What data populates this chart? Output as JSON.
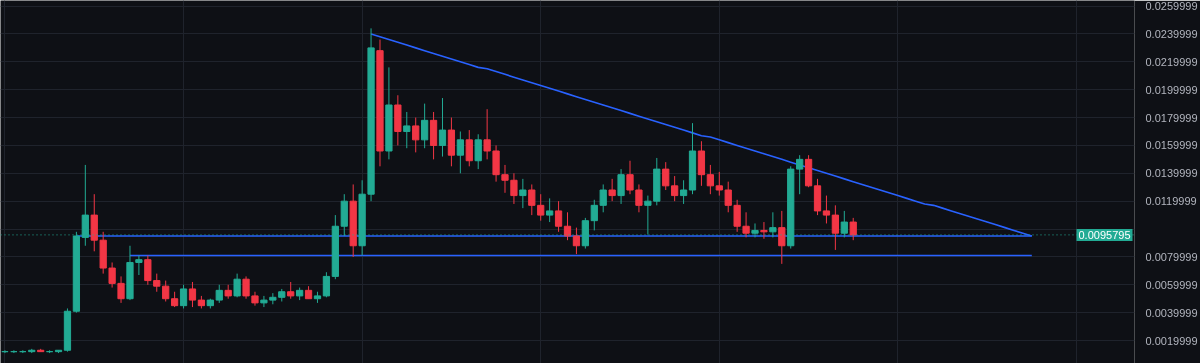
{
  "chart_data": {
    "type": "candlestick",
    "ylim": [
      0.00035,
      0.0264
    ],
    "categories": [
      null,
      null,
      null,
      null,
      null,
      null,
      null,
      null,
      null,
      null,
      null,
      null,
      null,
      null,
      null,
      null,
      null,
      null,
      null,
      null,
      null,
      null,
      null,
      null,
      null,
      null,
      null,
      null,
      null,
      null,
      null,
      null,
      null,
      null,
      null,
      null,
      null,
      null,
      null,
      null,
      null,
      null,
      null,
      null,
      null,
      null,
      null,
      null,
      null,
      null,
      null,
      null,
      null,
      null,
      null,
      null,
      null,
      null,
      null,
      null,
      null,
      null,
      null,
      null,
      null,
      null,
      null,
      null,
      null,
      null,
      null,
      null,
      null,
      null,
      null,
      null,
      null,
      null,
      null,
      null,
      null,
      null,
      null,
      null,
      null,
      null,
      null,
      null,
      null,
      null,
      null,
      null,
      null,
      null,
      null,
      null,
      null,
      null,
      null,
      null,
      null,
      null,
      null,
      null,
      null,
      null,
      null,
      null,
      null,
      null,
      null,
      null,
      null,
      null,
      null,
      null,
      null,
      null,
      null,
      null,
      null,
      null,
      null,
      null,
      null,
      null,
      null
    ],
    "yticks": [
      0.0019999,
      0.0039999,
      0.0059999,
      0.0079999,
      {
        "value": 0.0099999,
        "label": null
      },
      0.0119999,
      0.0139999,
      0.0159999,
      0.0179999,
      0.0199999,
      0.0219999,
      0.0239999,
      0.0259999
    ],
    "tick_labels": "y",
    "grid": true,
    "ref_lines": [
      {
        "axis": "y",
        "value": 0.0095795,
        "label": "0.0095795",
        "color": "#22ab94",
        "line_style": "dotted"
      }
    ],
    "ohlc": [
      [
        0.0012,
        0.0013,
        0.0011,
        0.0012
      ],
      [
        0.0012,
        0.0013,
        0.0011,
        0.0012
      ],
      [
        0.0012,
        0.0013,
        0.0011,
        0.0012
      ],
      [
        0.0012,
        0.0014,
        0.0011,
        0.0013
      ],
      [
        0.0013,
        0.0014,
        0.0012,
        0.0012
      ],
      [
        0.0012,
        0.0013,
        0.0011,
        0.0012
      ],
      [
        0.0012,
        0.0013,
        0.0011,
        0.0013
      ],
      [
        0.0013,
        0.0043,
        0.0012,
        0.0041
      ],
      [
        0.0041,
        0.0098,
        0.004,
        0.0095
      ],
      [
        0.0094,
        0.0146,
        0.0088,
        0.011
      ],
      [
        0.011,
        0.0125,
        0.0084,
        0.0092
      ],
      [
        0.0092,
        0.0098,
        0.0068,
        0.0072
      ],
      [
        0.0072,
        0.0076,
        0.0058,
        0.0061
      ],
      [
        0.0061,
        0.0066,
        0.0047,
        0.005
      ],
      [
        0.005,
        0.0088,
        0.0049,
        0.0076
      ],
      [
        0.0076,
        0.0081,
        0.0067,
        0.0078
      ],
      [
        0.0078,
        0.0081,
        0.006,
        0.0063
      ],
      [
        0.0063,
        0.0068,
        0.0055,
        0.0059
      ],
      [
        0.0059,
        0.0063,
        0.0048,
        0.005
      ],
      [
        0.005,
        0.0055,
        0.0044,
        0.0045
      ],
      [
        0.0045,
        0.006,
        0.0043,
        0.0057
      ],
      [
        0.0057,
        0.0062,
        0.0044,
        0.0049
      ],
      [
        0.0049,
        0.0052,
        0.0043,
        0.0045
      ],
      [
        0.0045,
        0.005,
        0.0043,
        0.0049
      ],
      [
        0.0049,
        0.006,
        0.0047,
        0.0056
      ],
      [
        0.0056,
        0.006,
        0.005,
        0.0052
      ],
      [
        0.0052,
        0.0068,
        0.0051,
        0.0064
      ],
      [
        0.0064,
        0.0066,
        0.005,
        0.0052
      ],
      [
        0.0052,
        0.0055,
        0.0045,
        0.0047
      ],
      [
        0.0047,
        0.0052,
        0.0044,
        0.0049
      ],
      [
        0.0049,
        0.0054,
        0.0046,
        0.0051
      ],
      [
        0.0051,
        0.0057,
        0.0048,
        0.0055
      ],
      [
        0.0055,
        0.0062,
        0.005,
        0.0052
      ],
      [
        0.0052,
        0.0058,
        0.0049,
        0.0056
      ],
      [
        0.0056,
        0.0059,
        0.005,
        0.005
      ],
      [
        0.005,
        0.0055,
        0.0047,
        0.0052
      ],
      [
        0.0052,
        0.0069,
        0.0051,
        0.0066
      ],
      [
        0.0066,
        0.011,
        0.0064,
        0.0102
      ],
      [
        0.0102,
        0.0125,
        0.0095,
        0.012
      ],
      [
        0.012,
        0.0132,
        0.008,
        0.0088
      ],
      [
        0.0088,
        0.0135,
        0.0081,
        0.0125
      ],
      [
        0.0125,
        0.0244,
        0.012,
        0.023
      ],
      [
        0.0228,
        0.0236,
        0.0145,
        0.0156
      ],
      [
        0.0156,
        0.0216,
        0.015,
        0.0189
      ],
      [
        0.0189,
        0.0196,
        0.016,
        0.017
      ],
      [
        0.017,
        0.0184,
        0.0158,
        0.0174
      ],
      [
        0.0174,
        0.018,
        0.0155,
        0.0164
      ],
      [
        0.0164,
        0.019,
        0.0158,
        0.0178
      ],
      [
        0.0178,
        0.0184,
        0.015,
        0.016
      ],
      [
        0.016,
        0.0194,
        0.0152,
        0.0171
      ],
      [
        0.0171,
        0.018,
        0.0145,
        0.0153
      ],
      [
        0.0153,
        0.017,
        0.014,
        0.0164
      ],
      [
        0.0164,
        0.0171,
        0.0145,
        0.0149
      ],
      [
        0.0149,
        0.0168,
        0.0143,
        0.0164
      ],
      [
        0.0164,
        0.0186,
        0.015,
        0.0156
      ],
      [
        0.0156,
        0.016,
        0.0134,
        0.0139
      ],
      [
        0.0139,
        0.0146,
        0.0126,
        0.0135
      ],
      [
        0.0135,
        0.014,
        0.0118,
        0.0124
      ],
      [
        0.0124,
        0.0136,
        0.0115,
        0.0128
      ],
      [
        0.0128,
        0.0132,
        0.011,
        0.0117
      ],
      [
        0.0117,
        0.0125,
        0.0106,
        0.011
      ],
      [
        0.011,
        0.0122,
        0.0105,
        0.0113
      ],
      [
        0.0113,
        0.012,
        0.0098,
        0.0102
      ],
      [
        0.0102,
        0.0112,
        0.0092,
        0.0095
      ],
      [
        0.0095,
        0.0101,
        0.0082,
        0.0088
      ],
      [
        0.0088,
        0.0108,
        0.0086,
        0.0106
      ],
      [
        0.0106,
        0.0121,
        0.0099,
        0.0117
      ],
      [
        0.0117,
        0.0132,
        0.0112,
        0.0128
      ],
      [
        0.0128,
        0.0136,
        0.012,
        0.0124
      ],
      [
        0.0124,
        0.0143,
        0.0118,
        0.0139
      ],
      [
        0.0139,
        0.0149,
        0.0125,
        0.0128
      ],
      [
        0.0128,
        0.0132,
        0.0112,
        0.0117
      ],
      [
        0.0117,
        0.0124,
        0.0096,
        0.012
      ],
      [
        0.012,
        0.0151,
        0.0117,
        0.0143
      ],
      [
        0.0143,
        0.0148,
        0.0128,
        0.0131
      ],
      [
        0.0131,
        0.0138,
        0.012,
        0.0124
      ],
      [
        0.0124,
        0.0135,
        0.0118,
        0.0128
      ],
      [
        0.0128,
        0.0176,
        0.0125,
        0.0156
      ],
      [
        0.0156,
        0.0163,
        0.0131,
        0.0139
      ],
      [
        0.0139,
        0.0146,
        0.0125,
        0.0131
      ],
      [
        0.0131,
        0.0141,
        0.0124,
        0.0128
      ],
      [
        0.0128,
        0.0134,
        0.0112,
        0.0117
      ],
      [
        0.0117,
        0.0121,
        0.0098,
        0.0102
      ],
      [
        0.0102,
        0.0112,
        0.0094,
        0.0097
      ],
      [
        0.0097,
        0.0104,
        0.0094,
        0.0099
      ],
      [
        0.0099,
        0.0105,
        0.0093,
        0.0098
      ],
      [
        0.0098,
        0.0112,
        0.0094,
        0.0101
      ],
      [
        0.0101,
        0.0113,
        0.0075,
        0.0088
      ],
      [
        0.0088,
        0.0145,
        0.0086,
        0.0143
      ],
      [
        0.0143,
        0.0153,
        0.0125,
        0.015
      ],
      [
        0.015,
        0.0153,
        0.013,
        0.0131
      ],
      [
        0.0131,
        0.0136,
        0.011,
        0.0113
      ],
      [
        0.0113,
        0.0124,
        0.0104,
        0.011
      ],
      [
        0.011,
        0.0117,
        0.0085,
        0.0097
      ],
      [
        0.0097,
        0.0113,
        0.0094,
        0.0105
      ],
      [
        0.0105,
        0.0108,
        0.0092,
        0.0095795
      ],
      null,
      null,
      null,
      null,
      null,
      null,
      null,
      null,
      null,
      null,
      null,
      null,
      null,
      null,
      null,
      null,
      null,
      null,
      null,
      null,
      null,
      null,
      null,
      null,
      null,
      null,
      null,
      null,
      null,
      null,
      null
    ],
    "colors": [
      "#22ab94",
      "#22ab94",
      "#22ab94",
      "#22ab94",
      "#f23645",
      "#22ab94",
      "#22ab94",
      "#22ab94",
      "#22ab94",
      "#22ab94",
      "#f23645",
      "#f23645",
      "#f23645",
      "#f23645",
      "#22ab94",
      "#22ab94",
      "#f23645",
      "#f23645",
      "#f23645",
      "#f23645",
      "#22ab94",
      "#f23645",
      "#f23645",
      "#22ab94",
      "#22ab94",
      "#f23645",
      "#22ab94",
      "#f23645",
      "#f23645",
      "#22ab94",
      "#22ab94",
      "#22ab94",
      "#f23645",
      "#22ab94",
      "#f23645",
      "#22ab94",
      "#22ab94",
      "#22ab94",
      "#22ab94",
      "#f23645",
      "#22ab94",
      "#22ab94",
      "#f23645",
      "#22ab94",
      "#f23645",
      "#22ab94",
      "#f23645",
      "#22ab94",
      "#f23645",
      "#22ab94",
      "#f23645",
      "#22ab94",
      "#f23645",
      "#22ab94",
      "#f23645",
      "#f23645",
      "#f23645",
      "#f23645",
      "#22ab94",
      "#f23645",
      "#f23645",
      "#22ab94",
      "#f23645",
      "#f23645",
      "#f23645",
      "#22ab94",
      "#22ab94",
      "#22ab94",
      "#f23645",
      "#22ab94",
      "#f23645",
      "#f23645",
      "#22ab94",
      "#22ab94",
      "#f23645",
      "#f23645",
      "#22ab94",
      "#22ab94",
      "#f23645",
      "#f23645",
      "#f23645",
      "#f23645",
      "#f23645",
      "#f23645",
      "#22ab94",
      "#f23645",
      "#22ab94",
      "#f23645",
      "#22ab94",
      "#22ab94",
      "#f23645",
      "#f23645",
      "#f23645",
      "#f23645",
      "#22ab94",
      "#f23645",
      null,
      null,
      null,
      null,
      null,
      null,
      null,
      null,
      null,
      null,
      null,
      null,
      null,
      null,
      null,
      null,
      null,
      null,
      null,
      null,
      null,
      null,
      null,
      null,
      null,
      null,
      null,
      null,
      null,
      null,
      null
    ],
    "series": [
      {
        "type": "line",
        "color": "#2962ff",
        "values": [
          null,
          null,
          null,
          null,
          null,
          null,
          null,
          null,
          null,
          null,
          null,
          null,
          null,
          null,
          null,
          null,
          null,
          null,
          null,
          null,
          null,
          null,
          null,
          null,
          null,
          null,
          null,
          null,
          null,
          null,
          null,
          null,
          null,
          null,
          null,
          null,
          null,
          null,
          null,
          null,
          null,
          0.024,
          0.0238,
          0.0236,
          0.0234,
          0.0232,
          0.023,
          0.0228,
          0.0226,
          0.0224,
          0.0222,
          0.022,
          0.0218,
          0.0216,
          0.0215,
          0.0213,
          0.0211,
          0.0209,
          0.0207,
          0.0205,
          0.0203,
          0.0201,
          0.0199,
          0.0197,
          0.0195,
          0.0193,
          0.0191,
          0.0189,
          0.0187,
          0.0185,
          0.0183,
          0.0181,
          0.0179,
          0.0177,
          0.0175,
          0.0173,
          0.0171,
          0.0169,
          0.0167,
          0.0166,
          0.0164,
          0.0162,
          0.016,
          0.0158,
          0.0156,
          0.0154,
          0.0152,
          0.015,
          0.0148,
          0.0146,
          0.0144,
          0.0142,
          0.014,
          0.0138,
          0.0136,
          0.0134,
          0.0132,
          0.013,
          0.0128,
          0.0126,
          0.0124,
          0.0122,
          0.012,
          0.0118,
          0.0117,
          0.0115,
          0.0113,
          0.0111,
          0.0109,
          0.0107,
          0.0105,
          0.0103,
          0.0101,
          0.0099,
          0.0097,
          0.0095,
          null,
          null,
          null,
          null,
          null,
          null,
          null,
          null,
          null,
          null,
          null
        ]
      },
      {
        "type": "line",
        "color": "#2962ff",
        "values": [
          null,
          null,
          null,
          null,
          null,
          null,
          null,
          null,
          0.0095,
          0.0095,
          0.0095,
          0.0095,
          0.0095,
          0.0095,
          0.0095,
          0.0095,
          0.0095,
          0.0095,
          0.0095,
          0.0095,
          0.0095,
          0.0095,
          0.0095,
          0.0095,
          0.0095,
          0.0095,
          0.0095,
          0.0095,
          0.0095,
          0.0095,
          0.0095,
          0.0095,
          0.0095,
          0.0095,
          0.0095,
          0.0095,
          0.0095,
          0.0095,
          0.0095,
          0.0095,
          0.0095,
          0.0095,
          0.0095,
          0.0095,
          0.0095,
          0.0095,
          0.0095,
          0.0095,
          0.0095,
          0.0095,
          0.0095,
          0.0095,
          0.0095,
          0.0095,
          0.0095,
          0.0095,
          0.0095,
          0.0095,
          0.0095,
          0.0095,
          0.0095,
          0.0095,
          0.0095,
          0.0095,
          0.0095,
          0.0095,
          0.0095,
          0.0095,
          0.0095,
          0.0095,
          0.0095,
          0.0095,
          0.0095,
          0.0095,
          0.0095,
          0.0095,
          0.0095,
          0.0095,
          0.0095,
          0.0095,
          0.0095,
          0.0095,
          0.0095,
          0.0095,
          0.0095,
          0.0095,
          0.0095,
          0.0095,
          0.0095,
          0.0095,
          0.0095,
          0.0095,
          0.0095,
          0.0095,
          0.0095,
          0.0095,
          0.0095,
          0.0095,
          0.0095,
          0.0095,
          0.0095,
          0.0095,
          0.0095,
          0.0095,
          0.0095,
          0.0095,
          0.0095,
          0.0095,
          0.0095,
          0.0095,
          0.0095,
          0.0095,
          0.0095,
          0.0095,
          0.0095,
          0.0095,
          null,
          null,
          null,
          null,
          null,
          null,
          null,
          null,
          null,
          null,
          null
        ]
      },
      {
        "type": "line",
        "color": "#2962ff",
        "values": [
          null,
          null,
          null,
          null,
          null,
          null,
          null,
          null,
          null,
          null,
          null,
          null,
          null,
          null,
          0.0081,
          0.0081,
          0.0081,
          0.0081,
          0.0081,
          0.0081,
          0.0081,
          0.0081,
          0.0081,
          0.0081,
          0.0081,
          0.0081,
          0.0081,
          0.0081,
          0.0081,
          0.0081,
          0.0081,
          0.0081,
          0.0081,
          0.0081,
          0.0081,
          0.0081,
          0.0081,
          0.0081,
          0.0081,
          0.0081,
          0.0081,
          0.0081,
          0.0081,
          0.0081,
          0.0081,
          0.0081,
          0.0081,
          0.0081,
          0.0081,
          0.0081,
          0.0081,
          0.0081,
          0.0081,
          0.0081,
          0.0081,
          0.0081,
          0.0081,
          0.0081,
          0.0081,
          0.0081,
          0.0081,
          0.0081,
          0.0081,
          0.0081,
          0.0081,
          0.0081,
          0.0081,
          0.0081,
          0.0081,
          0.0081,
          0.0081,
          0.0081,
          0.0081,
          0.0081,
          0.0081,
          0.0081,
          0.0081,
          0.0081,
          0.0081,
          0.0081,
          0.0081,
          0.0081,
          0.0081,
          0.0081,
          0.0081,
          0.0081,
          0.0081,
          0.0081,
          0.0081,
          0.0081,
          0.0081,
          0.0081,
          0.0081,
          0.0081,
          0.0081,
          0.0081,
          0.0081,
          0.0081,
          0.0081,
          0.0081,
          0.0081,
          0.0081,
          0.0081,
          0.0081,
          0.0081,
          0.0081,
          0.0081,
          0.0081,
          0.0081,
          0.0081,
          0.0081,
          0.0081,
          0.0081,
          0.0081,
          0.0081,
          0.0081,
          null,
          null,
          null,
          null,
          null,
          null,
          null,
          null,
          null,
          null,
          null
        ]
      }
    ]
  }
}
